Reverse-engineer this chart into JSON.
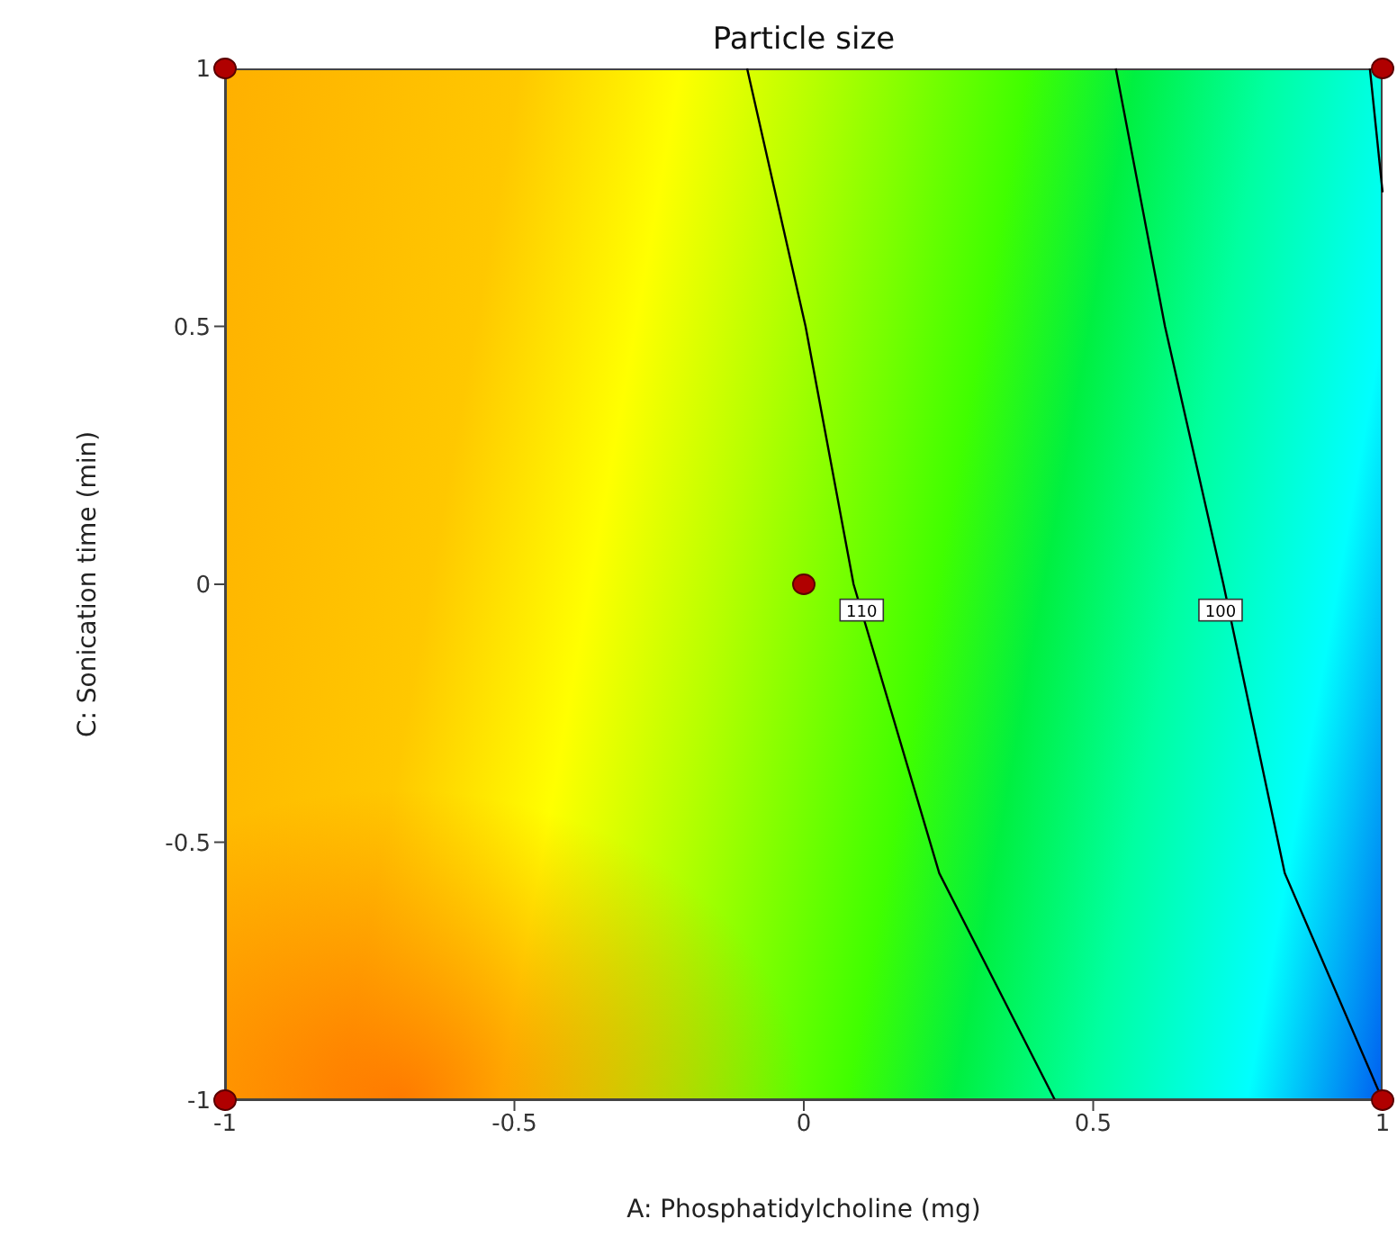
{
  "chart_data": {
    "type": "scatter",
    "title": "Particle size",
    "xlabel": "A: Phosphatidylcholine (mg)",
    "ylabel": "C: Sonication time (min)",
    "xlim": [
      -1,
      1
    ],
    "ylim": [
      -1,
      1
    ],
    "xticks": [
      -1,
      -0.5,
      0,
      0.5,
      1
    ],
    "yticks": [
      -1,
      -0.5,
      0,
      0.5,
      1
    ],
    "grid": false,
    "legend": false,
    "marker": "circle",
    "series": [
      {
        "type": "line",
        "marker": "none",
        "color": "#000000",
        "x": [
          -0.098,
          0.003,
          0.086,
          0.234,
          0.434
        ],
        "values": [
          1,
          0.5,
          0,
          -0.56,
          -1
        ]
      },
      {
        "type": "line",
        "marker": "none",
        "color": "#000000",
        "x": [
          0.539,
          0.624,
          0.725,
          0.831,
          1.0
        ],
        "values": [
          1,
          0.5,
          0,
          -0.56,
          -1
        ]
      },
      {
        "type": "line",
        "marker": "none",
        "color": "#000000",
        "x": [
          0.978,
          1.0
        ],
        "values": [
          1,
          0.76
        ]
      },
      {
        "color": "#b00000",
        "x": [
          -1,
          1,
          0,
          -1,
          1
        ],
        "values": [
          1,
          1,
          0,
          -1,
          -1
        ]
      }
    ],
    "annotations": [
      {
        "text": "110",
        "x": 0.1,
        "y": -0.05
      },
      {
        "text": "100",
        "x": 0.72,
        "y": -0.05
      }
    ]
  }
}
